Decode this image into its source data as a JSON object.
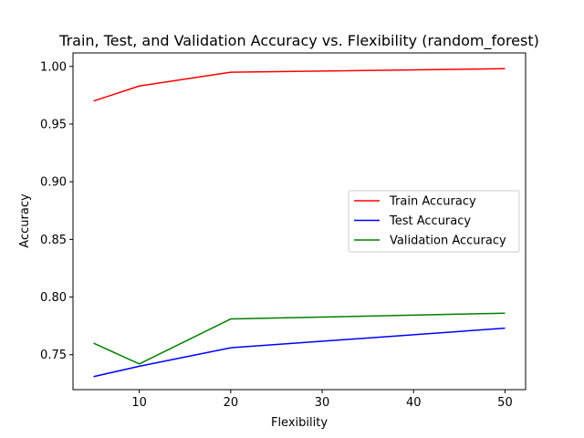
{
  "chart_data": {
    "type": "line",
    "title": "Train, Test, and Validation Accuracy vs. Flexibility (random_forest)",
    "xlabel": "Flexibility",
    "ylabel": "Accuracy",
    "x": [
      5,
      10,
      20,
      50
    ],
    "xlim": [
      2.75,
      52.25
    ],
    "ylim": [
      0.7197,
      1.0117
    ],
    "xticks": [
      10,
      20,
      30,
      40,
      50
    ],
    "xtick_labels": [
      "10",
      "20",
      "30",
      "40",
      "50"
    ],
    "yticks": [
      0.75,
      0.8,
      0.85,
      0.9,
      0.95,
      1.0
    ],
    "ytick_labels": [
      "0.75",
      "0.80",
      "0.85",
      "0.90",
      "0.95",
      "1.00"
    ],
    "grid": false,
    "legend_position": "center-right",
    "series": [
      {
        "name": "Train Accuracy",
        "color": "#ff0000",
        "values": [
          0.97,
          0.983,
          0.995,
          0.998
        ]
      },
      {
        "name": "Test Accuracy",
        "color": "#0000ff",
        "values": [
          0.731,
          0.74,
          0.756,
          0.773
        ]
      },
      {
        "name": "Validation Accuracy",
        "color": "#008000",
        "values": [
          0.76,
          0.742,
          0.781,
          0.786
        ]
      }
    ]
  }
}
